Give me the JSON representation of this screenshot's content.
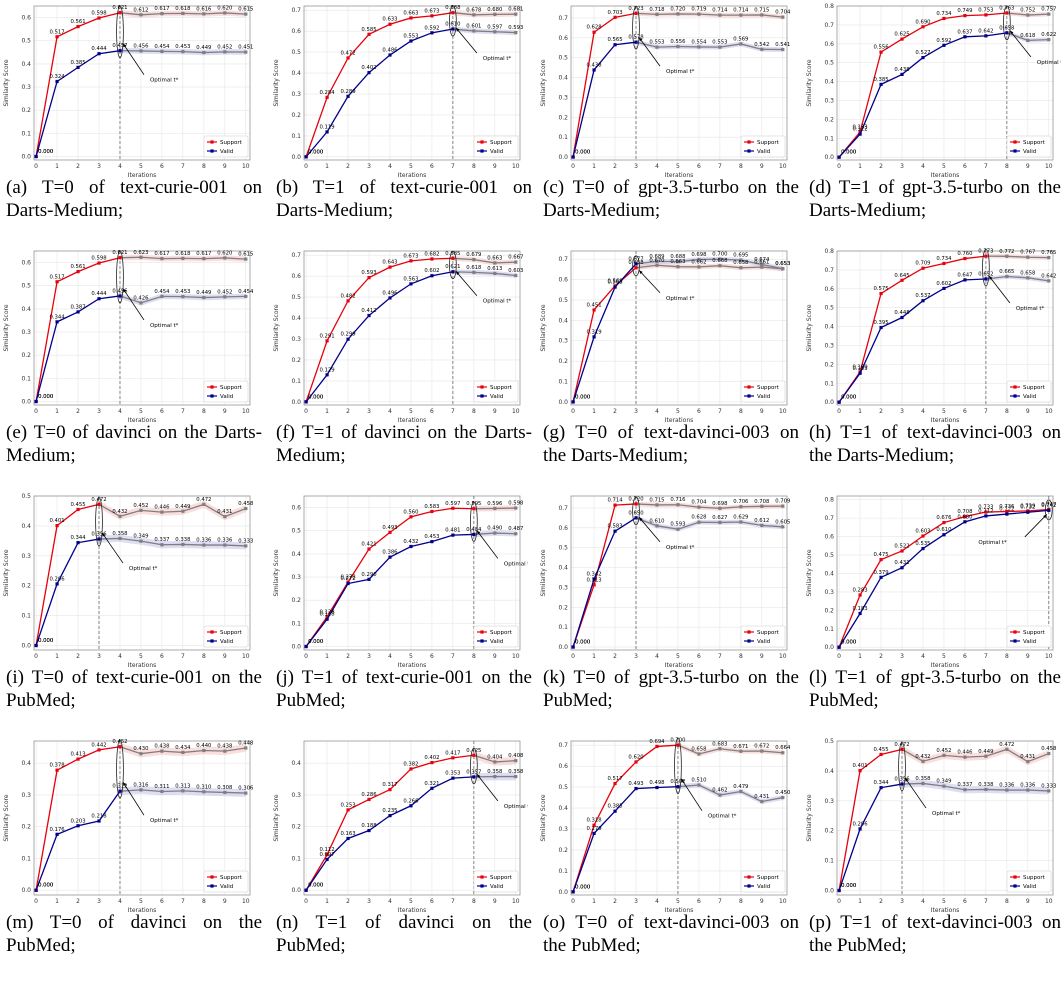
{
  "common": {
    "xlabel": "Iterations",
    "ylabel": "Similarity Score",
    "legend": [
      "Support",
      "Valid"
    ],
    "optimal_label": "Optimal t*",
    "colors": {
      "support": "#e8000b",
      "valid": "#00008b",
      "after": "#7f7f7f",
      "support_band": "#f5b3b3",
      "valid_band": "#b3b3e6"
    }
  },
  "chart_data": [
    {
      "id": "a",
      "type": "line",
      "caption": "(a) T=0 of text-curie-001 on Darts-Medium;",
      "ylim": [
        0,
        0.65
      ],
      "yticks": [
        0,
        0.1,
        0.2,
        0.3,
        0.4,
        0.5,
        0.6
      ],
      "optimal": 4,
      "x": [
        0,
        1,
        2,
        3,
        4,
        5,
        6,
        7,
        8,
        9,
        10
      ],
      "series": [
        {
          "name": "Support",
          "values": [
            0.0,
            0.517,
            0.561,
            0.598,
            0.621,
            0.612,
            0.617,
            0.618,
            0.616,
            0.62,
            0.615
          ]
        },
        {
          "name": "Valid",
          "values": [
            0.0,
            0.324,
            0.385,
            0.444,
            0.457,
            0.456,
            0.454,
            0.453,
            0.449,
            0.452,
            0.451
          ]
        }
      ]
    },
    {
      "id": "b",
      "type": "line",
      "caption": "(b) T=1 of text-curie-001 on Darts-Medium;",
      "ylim": [
        0,
        0.72
      ],
      "yticks": [
        0,
        0.1,
        0.2,
        0.3,
        0.4,
        0.5,
        0.6,
        0.7
      ],
      "optimal": 7,
      "x": [
        0,
        1,
        2,
        3,
        4,
        5,
        6,
        7,
        8,
        9,
        10
      ],
      "series": [
        {
          "name": "Support",
          "values": [
            0.0,
            0.284,
            0.472,
            0.585,
            0.633,
            0.663,
            0.673,
            0.688,
            0.678,
            0.68,
            0.681
          ]
        },
        {
          "name": "Valid",
          "values": [
            0.0,
            0.119,
            0.289,
            0.402,
            0.486,
            0.553,
            0.592,
            0.61,
            0.601,
            0.597,
            0.593
          ]
        }
      ]
    },
    {
      "id": "c",
      "type": "line",
      "caption": "(c) T=0 of gpt-3.5-turbo on the Darts-Medium;",
      "ylim": [
        0,
        0.76
      ],
      "yticks": [
        0,
        0.1,
        0.2,
        0.3,
        0.4,
        0.5,
        0.6,
        0.7
      ],
      "optimal": 3,
      "x": [
        0,
        1,
        2,
        3,
        4,
        5,
        6,
        7,
        8,
        9,
        10
      ],
      "series": [
        {
          "name": "Support",
          "values": [
            0.0,
            0.628,
            0.703,
            0.723,
            0.718,
            0.72,
            0.719,
            0.714,
            0.714,
            0.715,
            0.704
          ]
        },
        {
          "name": "Valid",
          "values": [
            0.0,
            0.438,
            0.565,
            0.578,
            0.553,
            0.556,
            0.554,
            0.553,
            0.569,
            0.542,
            0.541
          ]
        }
      ]
    },
    {
      "id": "d",
      "type": "line",
      "caption": "(d) T=1 of gpt-3.5-turbo on the Darts-Medium;",
      "ylim": [
        0,
        0.8
      ],
      "yticks": [
        0,
        0.1,
        0.2,
        0.3,
        0.4,
        0.5,
        0.6,
        0.7,
        0.8
      ],
      "optimal": 8,
      "x": [
        0,
        1,
        2,
        3,
        4,
        5,
        6,
        7,
        8,
        9,
        10
      ],
      "series": [
        {
          "name": "Support",
          "values": [
            0.0,
            0.133,
            0.556,
            0.625,
            0.69,
            0.734,
            0.749,
            0.753,
            0.763,
            0.752,
            0.757
          ]
        },
        {
          "name": "Valid",
          "values": [
            0.0,
            0.122,
            0.385,
            0.438,
            0.527,
            0.592,
            0.637,
            0.642,
            0.658,
            0.618,
            0.622
          ]
        }
      ]
    },
    {
      "id": "e",
      "type": "line",
      "caption": "(e) T=0 of davinci on the Darts-Medium;",
      "ylim": [
        0,
        0.65
      ],
      "yticks": [
        0,
        0.1,
        0.2,
        0.3,
        0.4,
        0.5,
        0.6
      ],
      "optimal": 4,
      "x": [
        0,
        1,
        2,
        3,
        4,
        5,
        6,
        7,
        8,
        9,
        10
      ],
      "series": [
        {
          "name": "Support",
          "values": [
            0.0,
            0.517,
            0.561,
            0.598,
            0.621,
            0.623,
            0.617,
            0.618,
            0.617,
            0.62,
            0.615
          ]
        },
        {
          "name": "Valid",
          "values": [
            0.0,
            0.344,
            0.387,
            0.444,
            0.456,
            0.426,
            0.454,
            0.453,
            0.449,
            0.452,
            0.454
          ]
        }
      ]
    },
    {
      "id": "f",
      "type": "line",
      "caption": "(f) T=1 of davinci on the Darts-Medium;",
      "ylim": [
        0,
        0.72
      ],
      "yticks": [
        0,
        0.1,
        0.2,
        0.3,
        0.4,
        0.5,
        0.6,
        0.7
      ],
      "optimal": 7,
      "x": [
        0,
        1,
        2,
        3,
        4,
        5,
        6,
        7,
        8,
        9,
        10
      ],
      "series": [
        {
          "name": "Support",
          "values": [
            0.0,
            0.291,
            0.482,
            0.593,
            0.643,
            0.673,
            0.682,
            0.685,
            0.679,
            0.663,
            0.667
          ]
        },
        {
          "name": "Valid",
          "values": [
            0.0,
            0.129,
            0.299,
            0.412,
            0.496,
            0.563,
            0.602,
            0.621,
            0.618,
            0.613,
            0.603
          ]
        }
      ]
    },
    {
      "id": "g",
      "type": "line",
      "caption": "(g) T=0 of text-davinci-003 on the Darts-Medium;",
      "ylim": [
        0,
        0.74
      ],
      "yticks": [
        0,
        0.1,
        0.2,
        0.3,
        0.4,
        0.5,
        0.6,
        0.7
      ],
      "optimal": 3,
      "x": [
        0,
        1,
        2,
        3,
        4,
        5,
        6,
        7,
        8,
        9,
        10
      ],
      "series": [
        {
          "name": "Support",
          "values": [
            0.0,
            0.451,
            0.569,
            0.658,
            0.67,
            0.663,
            0.662,
            0.668,
            0.658,
            0.661,
            0.653
          ]
        },
        {
          "name": "Valid",
          "values": [
            0.0,
            0.319,
            0.563,
            0.677,
            0.689,
            0.688,
            0.698,
            0.7,
            0.695,
            0.674,
            0.653
          ]
        }
      ]
    },
    {
      "id": "h",
      "type": "line",
      "caption": "(h) T=1 of text-davinci-003 on the Darts-Medium;",
      "ylim": [
        0,
        0.8
      ],
      "yticks": [
        0,
        0.1,
        0.2,
        0.3,
        0.4,
        0.5,
        0.6,
        0.7,
        0.8
      ],
      "optimal": 7,
      "x": [
        0,
        1,
        2,
        3,
        4,
        5,
        6,
        7,
        8,
        9,
        10
      ],
      "series": [
        {
          "name": "Support",
          "values": [
            0.0,
            0.16,
            0.575,
            0.645,
            0.709,
            0.734,
            0.76,
            0.773,
            0.772,
            0.767,
            0.765
          ]
        },
        {
          "name": "Valid",
          "values": [
            0.0,
            0.153,
            0.395,
            0.448,
            0.537,
            0.602,
            0.647,
            0.652,
            0.665,
            0.658,
            0.642
          ]
        }
      ]
    },
    {
      "id": "i",
      "type": "line",
      "caption": "(i) T=0 of text-curie-001 on the PubMed;",
      "ylim": [
        0,
        0.5
      ],
      "yticks": [
        0,
        0.1,
        0.2,
        0.3,
        0.4,
        0.5
      ],
      "optimal": 3,
      "x": [
        0,
        1,
        2,
        3,
        4,
        5,
        6,
        7,
        8,
        9,
        10
      ],
      "series": [
        {
          "name": "Support",
          "values": [
            0.0,
            0.401,
            0.455,
            0.472,
            0.432,
            0.452,
            0.446,
            0.449,
            0.472,
            0.431,
            0.458
          ]
        },
        {
          "name": "Valid",
          "values": [
            0.0,
            0.206,
            0.344,
            0.356,
            0.358,
            0.349,
            0.337,
            0.338,
            0.336,
            0.336,
            0.333
          ]
        }
      ]
    },
    {
      "id": "j",
      "type": "line",
      "caption": "(j) T=1 of text-curie-001 on the PubMed;",
      "ylim": [
        0,
        0.65
      ],
      "yticks": [
        0,
        0.1,
        0.2,
        0.3,
        0.4,
        0.5,
        0.6
      ],
      "optimal": 8,
      "x": [
        0,
        1,
        2,
        3,
        4,
        5,
        6,
        7,
        8,
        9,
        10
      ],
      "series": [
        {
          "name": "Support",
          "values": [
            0.0,
            0.128,
            0.278,
            0.421,
            0.493,
            0.56,
            0.583,
            0.597,
            0.595,
            0.596,
            0.598
          ]
        },
        {
          "name": "Valid",
          "values": [
            0.0,
            0.118,
            0.272,
            0.29,
            0.386,
            0.432,
            0.453,
            0.481,
            0.484,
            0.49,
            0.487
          ]
        }
      ]
    },
    {
      "id": "k",
      "type": "line",
      "caption": "(k) T=0 of gpt-3.5-turbo on the PubMed;",
      "ylim": [
        0,
        0.76
      ],
      "yticks": [
        0,
        0.1,
        0.2,
        0.3,
        0.4,
        0.5,
        0.6,
        0.7
      ],
      "optimal": 3,
      "x": [
        0,
        1,
        2,
        3,
        4,
        5,
        6,
        7,
        8,
        9,
        10
      ],
      "series": [
        {
          "name": "Support",
          "values": [
            0.0,
            0.313,
            0.714,
            0.72,
            0.715,
            0.716,
            0.704,
            0.698,
            0.706,
            0.708,
            0.709
          ]
        },
        {
          "name": "Valid",
          "values": [
            0.0,
            0.342,
            0.583,
            0.65,
            0.61,
            0.593,
            0.628,
            0.627,
            0.629,
            0.612,
            0.605
          ]
        }
      ]
    },
    {
      "id": "l",
      "type": "line",
      "caption": "(l) T=1 of gpt-3.5-turbo on the PubMed;",
      "ylim": [
        0,
        0.82
      ],
      "yticks": [
        0,
        0.1,
        0.2,
        0.3,
        0.4,
        0.5,
        0.6,
        0.7,
        0.8
      ],
      "optimal": 10,
      "x": [
        0,
        1,
        2,
        3,
        4,
        5,
        6,
        7,
        8,
        9,
        10
      ],
      "series": [
        {
          "name": "Support",
          "values": [
            0.0,
            0.283,
            0.475,
            0.522,
            0.603,
            0.676,
            0.708,
            0.733,
            0.736,
            0.739,
            0.747
          ]
        },
        {
          "name": "Valid",
          "values": [
            0.0,
            0.183,
            0.379,
            0.431,
            0.535,
            0.61,
            0.68,
            0.712,
            0.722,
            0.732,
            0.742
          ]
        }
      ]
    },
    {
      "id": "m",
      "type": "line",
      "caption": "(m) T=0 of davinci on the PubMed;",
      "ylim": [
        0,
        0.47
      ],
      "yticks": [
        0,
        0.1,
        0.2,
        0.3,
        0.4
      ],
      "optimal": 4,
      "x": [
        0,
        1,
        2,
        3,
        4,
        5,
        6,
        7,
        8,
        9,
        10
      ],
      "series": [
        {
          "name": "Support",
          "values": [
            0.0,
            0.378,
            0.413,
            0.442,
            0.452,
            0.43,
            0.438,
            0.434,
            0.44,
            0.438,
            0.448
          ]
        },
        {
          "name": "Valid",
          "values": [
            0.0,
            0.176,
            0.203,
            0.218,
            0.312,
            0.316,
            0.311,
            0.313,
            0.31,
            0.308,
            0.306
          ]
        }
      ]
    },
    {
      "id": "n",
      "type": "line",
      "caption": "(n) T=1 of davinci on the PubMed;",
      "ylim": [
        0,
        0.47
      ],
      "yticks": [
        0,
        0.1,
        0.2,
        0.3,
        0.4
      ],
      "optimal": 8,
      "x": [
        0,
        1,
        2,
        3,
        4,
        5,
        6,
        7,
        8,
        9,
        10
      ],
      "series": [
        {
          "name": "Support",
          "values": [
            0.0,
            0.112,
            0.253,
            0.286,
            0.317,
            0.382,
            0.402,
            0.417,
            0.425,
            0.404,
            0.408
          ]
        },
        {
          "name": "Valid",
          "values": [
            0.0,
            0.097,
            0.163,
            0.188,
            0.235,
            0.266,
            0.321,
            0.353,
            0.357,
            0.358,
            0.358
          ]
        }
      ]
    },
    {
      "id": "o",
      "type": "line",
      "caption": "(o) T=0 of text-davinci-003 on the PubMed;",
      "ylim": [
        0,
        0.72
      ],
      "yticks": [
        0,
        0.1,
        0.2,
        0.3,
        0.4,
        0.5,
        0.6,
        0.7
      ],
      "optimal": 5,
      "x": [
        0,
        1,
        2,
        3,
        4,
        5,
        6,
        7,
        8,
        9,
        10
      ],
      "series": [
        {
          "name": "Support",
          "values": [
            0.0,
            0.318,
            0.517,
            0.62,
            0.694,
            0.7,
            0.658,
            0.683,
            0.671,
            0.672,
            0.664
          ]
        },
        {
          "name": "Valid",
          "values": [
            0.0,
            0.279,
            0.385,
            0.493,
            0.498,
            0.502,
            0.51,
            0.462,
            0.479,
            0.431,
            0.45
          ]
        }
      ]
    },
    {
      "id": "p",
      "type": "line",
      "caption": "(p) T=1 of text-davinci-003 on the PubMed;",
      "ylim": [
        0,
        0.5
      ],
      "yticks": [
        0,
        0.1,
        0.2,
        0.3,
        0.4,
        0.5
      ],
      "optimal": 3,
      "x": [
        0,
        1,
        2,
        3,
        4,
        5,
        6,
        7,
        8,
        9,
        10
      ],
      "series": [
        {
          "name": "Support",
          "values": [
            0.0,
            0.401,
            0.455,
            0.472,
            0.432,
            0.452,
            0.446,
            0.449,
            0.472,
            0.431,
            0.458
          ]
        },
        {
          "name": "Valid",
          "values": [
            0.0,
            0.206,
            0.344,
            0.356,
            0.358,
            0.349,
            0.337,
            0.338,
            0.336,
            0.336,
            0.333
          ]
        }
      ]
    }
  ]
}
